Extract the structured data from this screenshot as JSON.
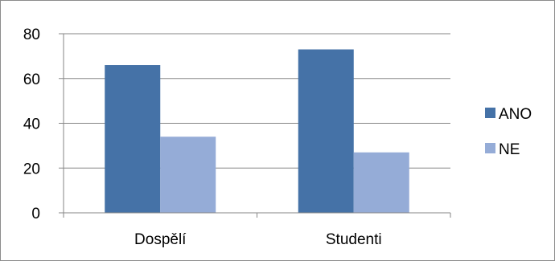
{
  "chart_data": {
    "type": "bar",
    "categories": [
      "Dospělí",
      "Studenti"
    ],
    "series": [
      {
        "name": "ANO",
        "values": [
          66,
          73
        ],
        "color": "#4572a7"
      },
      {
        "name": "NE",
        "values": [
          34,
          27
        ],
        "color": "#95acd7"
      }
    ],
    "ylim": [
      0,
      80
    ],
    "yticks": [
      "0",
      "20",
      "40",
      "60",
      "80"
    ],
    "grid": true,
    "legend": "right"
  }
}
